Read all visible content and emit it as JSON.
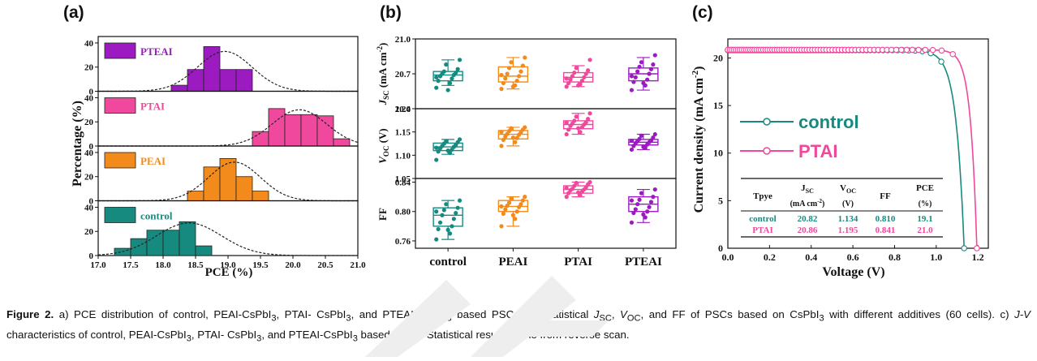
{
  "panels": {
    "a": "(a)",
    "b": "(b)",
    "c": "(c)"
  },
  "colors": {
    "PTEAI": "#9b1bc0",
    "PTAI": "#f0489c",
    "PEAI": "#f28a1c",
    "control": "#178a80",
    "fit": "#222222"
  },
  "chart_data": [
    {
      "type": "bar",
      "panel": "a",
      "xlabel": "PCE (%)",
      "ylabel": "Percentage (%)",
      "xlim": [
        17.0,
        21.0
      ],
      "xticks": [
        "17.0",
        "17.5",
        "18.0",
        "18.5",
        "19.0",
        "19.5",
        "20.0",
        "20.5",
        "21.0"
      ],
      "yticks": [
        "0",
        "20",
        "40"
      ],
      "bin_width": 0.25,
      "series": [
        {
          "name": "PTEAI",
          "bins": [
            18.25,
            18.5,
            18.75,
            19.0,
            19.25,
            19.5
          ],
          "values": [
            5,
            18,
            37,
            18,
            18,
            0
          ],
          "fit_mean": 18.95,
          "fit_sd": 0.42,
          "fit_peak": 33
        },
        {
          "name": "PTAI",
          "bins": [
            19.5,
            19.75,
            20.0,
            20.25,
            20.5,
            20.75
          ],
          "values": [
            12,
            31,
            26,
            26,
            25,
            6
          ],
          "fit_mean": 20.1,
          "fit_sd": 0.42,
          "fit_peak": 30
        },
        {
          "name": "PEAI",
          "bins": [
            18.5,
            18.75,
            19.0,
            19.25,
            19.5,
            19.75
          ],
          "values": [
            8,
            28,
            35,
            20,
            8,
            0
          ],
          "fit_mean": 19.1,
          "fit_sd": 0.4,
          "fit_peak": 32
        },
        {
          "name": "control",
          "bins": [
            17.375,
            17.625,
            17.875,
            18.125,
            18.375,
            18.625,
            18.875
          ],
          "values": [
            6,
            14,
            21,
            21,
            28,
            8,
            0
          ],
          "fit_mean": 18.4,
          "fit_sd": 0.5,
          "fit_peak": 27
        }
      ]
    },
    {
      "type": "box",
      "panel": "b",
      "categories": [
        "control",
        "PEAI",
        "PTAI",
        "PTEAI"
      ],
      "subplots": [
        {
          "ylabel": "J_SC (mA cm^-2)",
          "ylim": [
            20.4,
            21.0
          ],
          "yticks": [
            "20.4",
            "20.7",
            "21.0"
          ],
          "boxes": [
            {
              "q1": 20.64,
              "median": 20.69,
              "q3": 20.72,
              "whisker_low": 20.6,
              "whisker_high": 20.82,
              "points": [
                20.58,
                20.62,
                20.64,
                20.66,
                20.68,
                20.69,
                20.7,
                20.71,
                20.72,
                20.74,
                20.78,
                20.82,
                20.56,
                20.67
              ]
            },
            {
              "q1": 20.63,
              "median": 20.68,
              "q3": 20.76,
              "whisker_low": 20.57,
              "whisker_high": 20.84,
              "points": [
                20.57,
                20.6,
                20.62,
                20.64,
                20.66,
                20.68,
                20.7,
                20.72,
                20.75,
                20.77,
                20.8,
                20.84,
                20.59,
                20.69
              ]
            },
            {
              "q1": 20.63,
              "median": 20.67,
              "q3": 20.71,
              "whisker_low": 20.59,
              "whisker_high": 20.77,
              "points": [
                20.59,
                20.61,
                20.62,
                20.64,
                20.65,
                20.67,
                20.68,
                20.7,
                20.71,
                20.73,
                20.75,
                20.82,
                20.6,
                20.66
              ]
            },
            {
              "q1": 20.64,
              "median": 20.7,
              "q3": 20.75,
              "whisker_low": 20.56,
              "whisker_high": 20.84,
              "points": [
                20.56,
                20.6,
                20.63,
                20.65,
                20.67,
                20.7,
                20.72,
                20.74,
                20.76,
                20.78,
                20.8,
                20.86,
                20.62,
                20.68
              ]
            }
          ]
        },
        {
          "ylabel": "V_OC (V)",
          "ylim": [
            1.05,
            1.2
          ],
          "yticks": [
            "1.05",
            "1.10",
            "1.15",
            "1.20"
          ],
          "boxes": [
            {
              "q1": 1.11,
              "median": 1.118,
              "q3": 1.126,
              "whisker_low": 1.102,
              "whisker_high": 1.134,
              "points": [
                1.09,
                1.105,
                1.108,
                1.112,
                1.115,
                1.118,
                1.12,
                1.122,
                1.125,
                1.128,
                1.13,
                1.134,
                1.11,
                1.116
              ]
            },
            {
              "q1": 1.135,
              "median": 1.145,
              "q3": 1.153,
              "whisker_low": 1.12,
              "whisker_high": 1.16,
              "points": [
                1.12,
                1.128,
                1.133,
                1.137,
                1.14,
                1.144,
                1.146,
                1.149,
                1.152,
                1.155,
                1.158,
                1.16,
                1.138,
                1.15
              ]
            },
            {
              "q1": 1.157,
              "median": 1.166,
              "q3": 1.174,
              "whisker_low": 1.145,
              "whisker_high": 1.19,
              "points": [
                1.145,
                1.15,
                1.155,
                1.16,
                1.163,
                1.166,
                1.168,
                1.171,
                1.174,
                1.178,
                1.183,
                1.19,
                1.158,
                1.17
              ]
            },
            {
              "q1": 1.122,
              "median": 1.128,
              "q3": 1.134,
              "whisker_low": 1.112,
              "whisker_high": 1.145,
              "points": [
                1.112,
                1.116,
                1.12,
                1.123,
                1.126,
                1.128,
                1.13,
                1.132,
                1.135,
                1.138,
                1.142,
                1.145,
                1.118,
                1.131
              ]
            }
          ]
        },
        {
          "ylabel": "FF",
          "ylim": [
            0.75,
            0.845
          ],
          "yticks": [
            "0.76",
            "0.80",
            "0.84"
          ],
          "boxes": [
            {
              "q1": 0.78,
              "median": 0.795,
              "q3": 0.805,
              "whisker_low": 0.762,
              "whisker_high": 0.815,
              "points": [
                0.762,
                0.77,
                0.776,
                0.78,
                0.785,
                0.79,
                0.795,
                0.798,
                0.802,
                0.805,
                0.81,
                0.815,
                0.775,
                0.8
              ]
            },
            {
              "q1": 0.8,
              "median": 0.807,
              "q3": 0.815,
              "whisker_low": 0.78,
              "whisker_high": 0.82,
              "points": [
                0.78,
                0.79,
                0.797,
                0.8,
                0.803,
                0.806,
                0.808,
                0.81,
                0.812,
                0.815,
                0.818,
                0.82,
                0.795,
                0.807
              ]
            },
            {
              "q1": 0.825,
              "median": 0.83,
              "q3": 0.835,
              "whisker_low": 0.82,
              "whisker_high": 0.84,
              "points": [
                0.82,
                0.822,
                0.825,
                0.827,
                0.829,
                0.83,
                0.831,
                0.833,
                0.835,
                0.837,
                0.839,
                0.84,
                0.826,
                0.832
              ]
            },
            {
              "q1": 0.8,
              "median": 0.81,
              "q3": 0.82,
              "whisker_low": 0.785,
              "whisker_high": 0.83,
              "points": [
                0.785,
                0.792,
                0.798,
                0.8,
                0.803,
                0.806,
                0.81,
                0.813,
                0.816,
                0.82,
                0.825,
                0.83,
                0.796,
                0.815
              ]
            }
          ]
        }
      ]
    },
    {
      "type": "line",
      "panel": "c",
      "xlabel": "Voltage (V)",
      "ylabel": "Current density (mA cm^-2)",
      "xlim": [
        0.0,
        1.25
      ],
      "ylim": [
        0,
        22
      ],
      "xticks": [
        "0.0",
        "0.2",
        "0.4",
        "0.6",
        "0.8",
        "1.0",
        "1.2"
      ],
      "yticks": [
        "0",
        "5",
        "10",
        "15",
        "20"
      ],
      "series": [
        {
          "name": "control",
          "jsc": 20.82,
          "voc": 1.134,
          "ff": 0.81,
          "pce": 19.1
        },
        {
          "name": "PTAI",
          "jsc": 20.86,
          "voc": 1.195,
          "ff": 0.841,
          "pce": 21.0
        }
      ],
      "table": {
        "headers": [
          "Tpye",
          "J_SC (mA cm^-2)",
          "V_OC (V)",
          "FF",
          "PCE (%)"
        ],
        "rows": [
          [
            "control",
            "20.82",
            "1.134",
            "0.810",
            "19.1"
          ],
          [
            "PTAI",
            "20.86",
            "1.195",
            "0.841",
            "21.0"
          ]
        ]
      }
    }
  ],
  "labels": {
    "a_xlabel": "PCE (%)",
    "a_ylabel": "Percentage (%)",
    "b_ylabel_jsc_main": "J",
    "b_ylabel_jsc_sub": "SC",
    "b_ylabel_jsc_unit": " (mA cm",
    "b_ylabel_jsc_sup": "-2",
    "b_ylabel_voc_main": "V",
    "b_ylabel_voc_sub": "OC",
    "b_ylabel_voc_unit": " (V)",
    "b_ylabel_ff": "FF",
    "c_xlabel": "Voltage (V)",
    "c_ylabel": "Current density (mA cm",
    "c_ylabel_sup": "-2",
    "c_ylabel_end": ")",
    "c_legend_control": "control",
    "c_legend_ptai": "PTAI",
    "tbl_type": "Tpye",
    "tbl_jsc_main": "J",
    "tbl_jsc_sub": "SC",
    "tbl_jsc_unit": "(mA cm",
    "tbl_jsc_sup": "-2",
    "tbl_jsc_end": ")",
    "tbl_voc_main": "V",
    "tbl_voc_sub": "OC",
    "tbl_voc_unit": "(V)",
    "tbl_ff": "FF",
    "tbl_pce": "PCE",
    "tbl_pce_unit": "(%)"
  },
  "caption": {
    "fig": "Figure 2.",
    "t1": " a) PCE distribution of control, PEAI-CsPbI",
    "t2": ", PTAI- CsPbI",
    "t3": ", and PTEAI-CsPbI",
    "t4": " based PSCs. b) Statistical ",
    "jsc_j": "J",
    "jsc_sub": "SC",
    "t5": ", ",
    "voc_v": "V",
    "voc_sub": "OC",
    "t6": ", and FF of PSCs based on CsPbI",
    "t7": " with different additives (60 cells). c) ",
    "jv": "J-V",
    "t8": " characteristics of control, PEAI-CsPbI",
    "t9": ", PTAI- CsPbI",
    "t10": ", and PTEAI-CsPbI",
    "t11": " based PSCs. Statistical results come from reverse scan.",
    "three": "3"
  }
}
